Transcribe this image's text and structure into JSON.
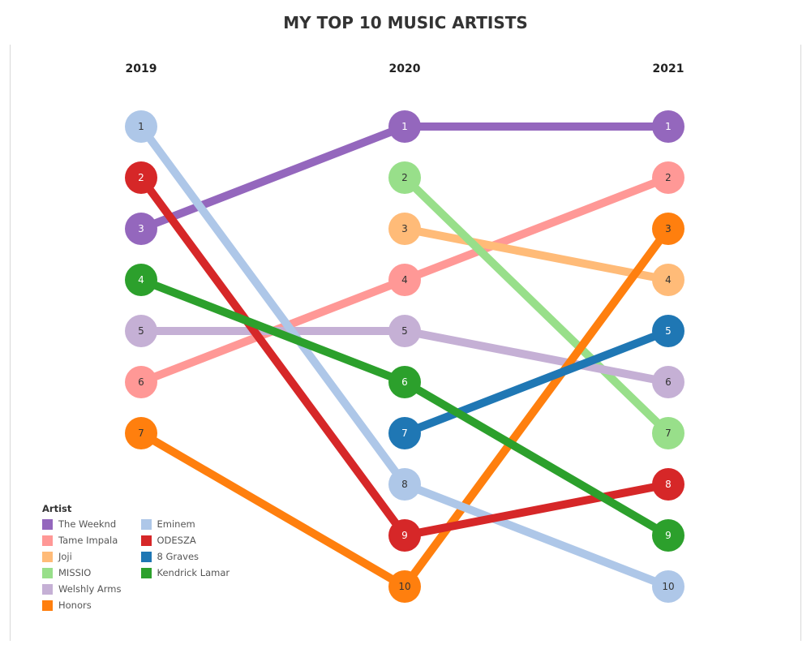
{
  "chart_data": {
    "type": "bump",
    "title": "MY TOP 10 MUSIC ARTISTS",
    "years": [
      "2019",
      "2020",
      "2021"
    ],
    "legend_title": "Artist",
    "legend_placement": "bottom-left",
    "y_reversed": true,
    "rank_range": [
      1,
      10
    ],
    "series": [
      {
        "name": "The Weeknd",
        "color": "#9467bd",
        "text_color": "#ffffff",
        "ranks": [
          3,
          1,
          1
        ]
      },
      {
        "name": "Tame Impala",
        "color": "#ff9896",
        "text_color": "#333333",
        "ranks": [
          6,
          4,
          2
        ]
      },
      {
        "name": "Joji",
        "color": "#ffbb78",
        "text_color": "#333333",
        "ranks": [
          null,
          3,
          4
        ]
      },
      {
        "name": "MISSIO",
        "color": "#98df8a",
        "text_color": "#333333",
        "ranks": [
          null,
          2,
          7
        ]
      },
      {
        "name": "Welshly Arms",
        "color": "#c5b0d5",
        "text_color": "#333333",
        "ranks": [
          5,
          5,
          6
        ]
      },
      {
        "name": "Honors",
        "color": "#ff7f0e",
        "text_color": "#333333",
        "ranks": [
          7,
          10,
          3
        ]
      },
      {
        "name": "Eminem",
        "color": "#aec7e8",
        "text_color": "#333333",
        "ranks": [
          1,
          8,
          10
        ]
      },
      {
        "name": "ODESZA",
        "color": "#d62728",
        "text_color": "#ffffff",
        "ranks": [
          2,
          9,
          8
        ]
      },
      {
        "name": "8 Graves",
        "color": "#1f77b4",
        "text_color": "#ffffff",
        "ranks": [
          null,
          7,
          5
        ]
      },
      {
        "name": "Kendrick Lamar",
        "color": "#2ca02c",
        "text_color": "#ffffff",
        "ranks": [
          4,
          6,
          9
        ]
      }
    ]
  }
}
